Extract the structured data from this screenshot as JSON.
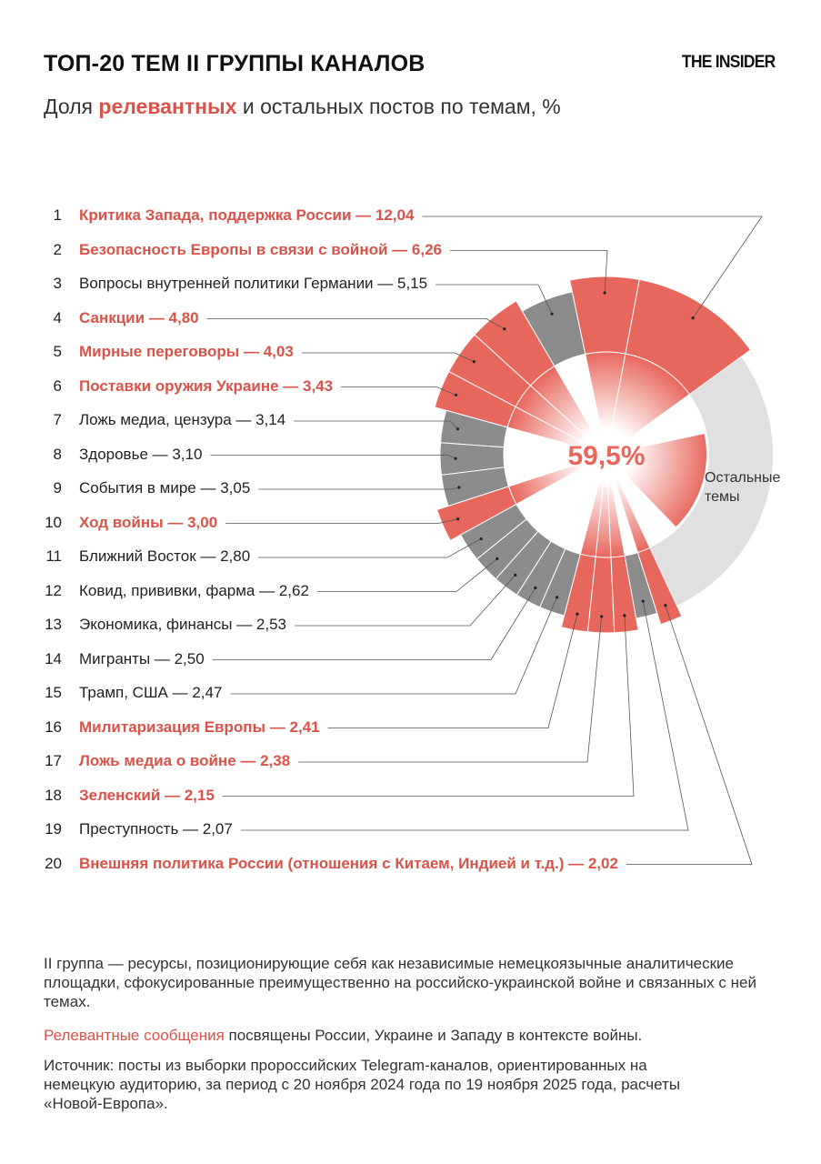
{
  "header": {
    "title": "ТОП-20 ТЕМ II ГРУППЫ КАНАЛОВ",
    "logo": "THE INSIDER",
    "subtitle_before": "Доля ",
    "subtitle_highlight": "релевантных",
    "subtitle_after": " и остальных постов по темам, %"
  },
  "chart_data": {
    "type": "radial-bar",
    "center_label": "59,5%",
    "others_label_line1": "Остальные",
    "others_label_line2": "темы",
    "colors": {
      "relevant": "#e8675d",
      "other": "#8c8c8c",
      "others_ring": "#e0e0e0",
      "relevant_text": "#d9534a"
    },
    "items": [
      {
        "rank": "1",
        "label": "Критика Запада, поддержка России — 12,04",
        "value": 12.04,
        "relevant": true
      },
      {
        "rank": "2",
        "label": "Безопасность Европы в связи с войной — 6,26",
        "value": 6.26,
        "relevant": true
      },
      {
        "rank": "3",
        "label": "Вопросы внутренней политики Германии — 5,15",
        "value": 5.15,
        "relevant": false
      },
      {
        "rank": "4",
        "label": "Санкции — 4,80",
        "value": 4.8,
        "relevant": true
      },
      {
        "rank": "5",
        "label": "Мирные переговоры — 4,03",
        "value": 4.03,
        "relevant": true
      },
      {
        "rank": "6",
        "label": "Поставки оружия Украине — 3,43",
        "value": 3.43,
        "relevant": true
      },
      {
        "rank": "7",
        "label": "Ложь медиа, цензура — 3,14",
        "value": 3.14,
        "relevant": false
      },
      {
        "rank": "8",
        "label": "Здоровье — 3,10",
        "value": 3.1,
        "relevant": false
      },
      {
        "rank": "9",
        "label": "События в мире — 3,05",
        "value": 3.05,
        "relevant": false
      },
      {
        "rank": "10",
        "label": "Ход войны — 3,00",
        "value": 3.0,
        "relevant": true
      },
      {
        "rank": "11",
        "label": "Ближний Восток — 2,80",
        "value": 2.8,
        "relevant": false
      },
      {
        "rank": "12",
        "label": "Ковид, прививки, фарма — 2,62",
        "value": 2.62,
        "relevant": false
      },
      {
        "rank": "13",
        "label": "Экономика, финансы — 2,53",
        "value": 2.53,
        "relevant": false
      },
      {
        "rank": "14",
        "label": "Мигранты — 2,50",
        "value": 2.5,
        "relevant": false
      },
      {
        "rank": "15",
        "label": "Трамп, США — 2,47",
        "value": 2.47,
        "relevant": false
      },
      {
        "rank": "16",
        "label": "Милитаризация Европы — 2,41",
        "value": 2.41,
        "relevant": true
      },
      {
        "rank": "17",
        "label": "Ложь медиа о войне — 2,38",
        "value": 2.38,
        "relevant": true
      },
      {
        "rank": "18",
        "label": "Зеленский — 2,15",
        "value": 2.15,
        "relevant": true
      },
      {
        "rank": "19",
        "label": "Преступность — 2,07",
        "value": 2.07,
        "relevant": false
      },
      {
        "rank": "20",
        "label": "Внешняя политика России (отношения с Китаем, Индией и т.д.) — 2,02",
        "value": 2.02,
        "relevant": true
      }
    ]
  },
  "footer": {
    "note1": "II группа — ресурсы, позиционирующие себя как независимые немецкоязычные аналитические площадки, сфокусированные преимущественно на российско-украинской войне и связанных с ней темах.",
    "note2_highlight": "Релевантные сообщения",
    "note2_rest": " посвящены России, Украине и Западу в контексте войны.",
    "source": "Источник: посты из выборки пророссийских Telegram-каналов, ориентированных на немецкую аудиторию, за период с 20 ноября 2024 года по 19 ноября 2025 года, расчеты «Новой-Европа»."
  }
}
